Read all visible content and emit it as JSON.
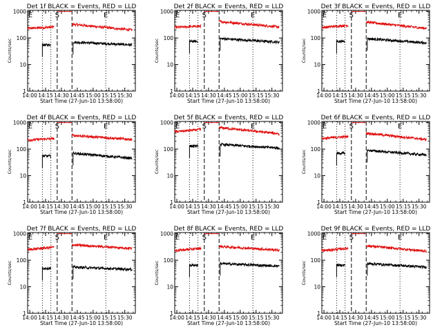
{
  "figure": {
    "colors": {
      "background": "#ffffff",
      "events": "#000000",
      "lld": "#e01010",
      "axes": "#000000"
    }
  },
  "chart_data": [
    {
      "type": "line",
      "title": "Det 1f BLACK = Events, RED = LLD",
      "xlabel": "Start Time (27-Jun-10 13:58:00)",
      "ylabel": "Counts/sec",
      "x_ticks": [
        "14:00",
        "14:15",
        "14:30",
        "14:45",
        "15:00",
        "15:15",
        "15:30"
      ],
      "y_ticks": [
        "1",
        "10",
        "100",
        "1000"
      ],
      "yscale": "log",
      "ylim": [
        1,
        1100
      ],
      "xlim": [
        "13:58",
        "15:40"
      ],
      "dotted_lines": [
        "14:12",
        "14:20",
        "15:12"
      ],
      "dashed_lines": [
        "14:26",
        "14:40"
      ],
      "markers": [
        {
          "text": "E",
          "x": "13:58"
        },
        {
          "text": "S",
          "x": "14:26"
        },
        {
          "text": "E",
          "x": "15:12"
        }
      ],
      "series": [
        {
          "color": "red",
          "segments": [
            {
              "x": [
                "13:58",
                "14:23"
              ],
              "y": [
                230,
                260
              ]
            },
            {
              "x": [
                "14:26",
                "14:40"
              ],
              "y": [
                1000,
                1000
              ]
            },
            {
              "x": [
                "14:40",
                "15:37"
              ],
              "y": [
                330,
                200
              ]
            }
          ]
        },
        {
          "color": "black",
          "segments": [
            {
              "x": [
                "14:12",
                "14:20"
              ],
              "y": [
                55,
                55
              ]
            },
            {
              "x": [
                "14:41",
                "15:37"
              ],
              "y": [
                70,
                55
              ]
            }
          ]
        }
      ]
    },
    {
      "type": "line",
      "title": "Det 2f BLACK = Events, RED = LLD",
      "xlabel": "Start Time (27-Jun-10 13:58:00)",
      "ylabel": "Counts/sec",
      "x_ticks": [
        "14:00",
        "14:15",
        "14:30",
        "14:45",
        "15:00",
        "15:15",
        "15:30"
      ],
      "y_ticks": [
        "1",
        "10",
        "100",
        "1000"
      ],
      "yscale": "log",
      "ylim": [
        1,
        1100
      ],
      "xlim": [
        "13:58",
        "15:40"
      ],
      "dotted_lines": [
        "14:12",
        "14:20",
        "15:12"
      ],
      "dashed_lines": [
        "14:26",
        "14:40"
      ],
      "markers": [
        {
          "text": "E",
          "x": "13:58"
        },
        {
          "text": "S",
          "x": "14:26"
        },
        {
          "text": "E",
          "x": "15:12"
        }
      ],
      "series": [
        {
          "color": "red",
          "segments": [
            {
              "x": [
                "13:58",
                "14:23"
              ],
              "y": [
                250,
                280
              ]
            },
            {
              "x": [
                "14:26",
                "14:40"
              ],
              "y": [
                1000,
                1000
              ]
            },
            {
              "x": [
                "14:40",
                "15:37"
              ],
              "y": [
                420,
                260
              ]
            }
          ]
        },
        {
          "color": "black",
          "segments": [
            {
              "x": [
                "14:12",
                "14:20"
              ],
              "y": [
                75,
                75
              ]
            },
            {
              "x": [
                "14:41",
                "15:37"
              ],
              "y": [
                95,
                70
              ]
            }
          ]
        }
      ]
    },
    {
      "type": "line",
      "title": "Det 3f BLACK = Events, RED = LLD",
      "xlabel": "Start Time (27-Jun-10 13:58:00)",
      "ylabel": "Counts/sec",
      "x_ticks": [
        "14:00",
        "14:15",
        "14:30",
        "14:45",
        "15:00",
        "15:15",
        "15:30"
      ],
      "y_ticks": [
        "1",
        "10",
        "100",
        "1000"
      ],
      "yscale": "log",
      "ylim": [
        1,
        1100
      ],
      "xlim": [
        "13:58",
        "15:40"
      ],
      "dotted_lines": [
        "14:12",
        "14:20",
        "15:12"
      ],
      "dashed_lines": [
        "14:26",
        "14:40"
      ],
      "markers": [
        {
          "text": "E",
          "x": "13:58"
        },
        {
          "text": "S",
          "x": "14:26"
        },
        {
          "text": "E",
          "x": "15:12"
        }
      ],
      "series": [
        {
          "color": "red",
          "segments": [
            {
              "x": [
                "13:58",
                "14:23"
              ],
              "y": [
                250,
                300
              ]
            },
            {
              "x": [
                "14:26",
                "14:40"
              ],
              "y": [
                1000,
                1000
              ]
            },
            {
              "x": [
                "14:40",
                "15:37"
              ],
              "y": [
                400,
                230
              ]
            }
          ]
        },
        {
          "color": "black",
          "segments": [
            {
              "x": [
                "14:12",
                "14:20"
              ],
              "y": [
                75,
                75
              ]
            },
            {
              "x": [
                "14:41",
                "15:37"
              ],
              "y": [
                95,
                65
              ]
            }
          ]
        }
      ]
    },
    {
      "type": "line",
      "title": "Det 4f BLACK = Events, RED = LLD",
      "xlabel": "Start Time (27-Jun-10 13:58:00)",
      "ylabel": "Counts/sec",
      "x_ticks": [
        "14:00",
        "14:15",
        "14:30",
        "14:45",
        "15:00",
        "15:15",
        "15:30"
      ],
      "y_ticks": [
        "1",
        "10",
        "100",
        "1000"
      ],
      "yscale": "log",
      "ylim": [
        1,
        1100
      ],
      "xlim": [
        "13:58",
        "15:40"
      ],
      "dotted_lines": [
        "14:12",
        "14:20",
        "15:12"
      ],
      "dashed_lines": [
        "14:26",
        "14:40"
      ],
      "markers": [
        {
          "text": "E",
          "x": "13:58"
        },
        {
          "text": "S",
          "x": "14:26"
        },
        {
          "text": "E",
          "x": "15:12"
        }
      ],
      "series": [
        {
          "color": "red",
          "segments": [
            {
              "x": [
                "13:58",
                "14:23"
              ],
              "y": [
                220,
                250
              ]
            },
            {
              "x": [
                "14:26",
                "14:40"
              ],
              "y": [
                1000,
                1000
              ]
            },
            {
              "x": [
                "14:40",
                "15:37"
              ],
              "y": [
                330,
                230
              ]
            }
          ]
        },
        {
          "color": "black",
          "segments": [
            {
              "x": [
                "14:12",
                "14:20"
              ],
              "y": [
                55,
                55
              ]
            },
            {
              "x": [
                "14:41",
                "15:37"
              ],
              "y": [
                70,
                45
              ]
            }
          ]
        }
      ]
    },
    {
      "type": "line",
      "title": "Det 5f BLACK = Events, RED = LLD",
      "xlabel": "Start Time (27-Jun-10 13:58:00)",
      "ylabel": "Counts/sec",
      "x_ticks": [
        "14:00",
        "14:15",
        "14:30",
        "14:45",
        "15:00",
        "15:15",
        "15:30"
      ],
      "y_ticks": [
        "1",
        "10",
        "100",
        "1000"
      ],
      "yscale": "log",
      "ylim": [
        1,
        1100
      ],
      "xlim": [
        "13:58",
        "15:40"
      ],
      "dotted_lines": [
        "14:12",
        "14:20",
        "15:12"
      ],
      "dashed_lines": [
        "14:26",
        "14:40"
      ],
      "markers": [
        {
          "text": "E",
          "x": "13:58"
        },
        {
          "text": "S",
          "x": "14:26"
        },
        {
          "text": "E",
          "x": "15:12"
        }
      ],
      "series": [
        {
          "color": "red",
          "segments": [
            {
              "x": [
                "13:58",
                "14:23"
              ],
              "y": [
                450,
                550
              ]
            },
            {
              "x": [
                "14:26",
                "14:40"
              ],
              "y": [
                1000,
                1000
              ]
            },
            {
              "x": [
                "14:40",
                "15:37"
              ],
              "y": [
                650,
                380
              ]
            }
          ]
        },
        {
          "color": "black",
          "segments": [
            {
              "x": [
                "14:12",
                "14:20"
              ],
              "y": [
                130,
                130
              ]
            },
            {
              "x": [
                "14:41",
                "15:37"
              ],
              "y": [
                150,
                110
              ]
            }
          ]
        }
      ]
    },
    {
      "type": "line",
      "title": "Det 6f BLACK = Events, RED = LLD",
      "xlabel": "Start Time (27-Jun-10 13:58:00)",
      "ylabel": "Counts/sec",
      "x_ticks": [
        "14:00",
        "14:15",
        "14:30",
        "14:45",
        "15:00",
        "15:15",
        "15:30"
      ],
      "y_ticks": [
        "1",
        "10",
        "100",
        "1000"
      ],
      "yscale": "log",
      "ylim": [
        1,
        1100
      ],
      "xlim": [
        "13:58",
        "15:40"
      ],
      "dotted_lines": [
        "14:12",
        "14:20",
        "15:12"
      ],
      "dashed_lines": [
        "14:26",
        "14:40"
      ],
      "markers": [
        {
          "text": "E",
          "x": "13:58"
        },
        {
          "text": "S",
          "x": "14:26"
        },
        {
          "text": "E",
          "x": "15:12"
        }
      ],
      "series": [
        {
          "color": "red",
          "segments": [
            {
              "x": [
                "13:58",
                "14:23"
              ],
              "y": [
                250,
                300
              ]
            },
            {
              "x": [
                "14:26",
                "14:40"
              ],
              "y": [
                1000,
                1000
              ]
            },
            {
              "x": [
                "14:40",
                "15:37"
              ],
              "y": [
                400,
                230
              ]
            }
          ]
        },
        {
          "color": "black",
          "segments": [
            {
              "x": [
                "14:12",
                "14:20"
              ],
              "y": [
                70,
                70
              ]
            },
            {
              "x": [
                "14:41",
                "15:37"
              ],
              "y": [
                90,
                60
              ]
            }
          ]
        }
      ]
    },
    {
      "type": "line",
      "title": "Det 7f BLACK = Events, RED = LLD",
      "xlabel": "Start Time (27-Jun-10 13:58:00)",
      "ylabel": "Counts/sec",
      "x_ticks": [
        "14:00",
        "14:15",
        "14:30",
        "14:45",
        "15:00",
        "15:15",
        "15:30"
      ],
      "y_ticks": [
        "1",
        "10",
        "100",
        "1000"
      ],
      "yscale": "log",
      "ylim": [
        1,
        1100
      ],
      "xlim": [
        "13:58",
        "15:40"
      ],
      "dotted_lines": [
        "14:12",
        "14:20",
        "15:12"
      ],
      "dashed_lines": [
        "14:26",
        "14:40"
      ],
      "markers": [
        {
          "text": "E",
          "x": "13:58"
        },
        {
          "text": "S",
          "x": "14:26"
        },
        {
          "text": "E",
          "x": "15:12"
        }
      ],
      "series": [
        {
          "color": "red",
          "segments": [
            {
              "x": [
                "13:58",
                "14:23"
              ],
              "y": [
                250,
                310
              ]
            },
            {
              "x": [
                "14:26",
                "14:40"
              ],
              "y": [
                1000,
                1000
              ]
            },
            {
              "x": [
                "14:40",
                "15:37"
              ],
              "y": [
                380,
                280
              ]
            }
          ]
        },
        {
          "color": "black",
          "segments": [
            {
              "x": [
                "14:12",
                "14:20"
              ],
              "y": [
                50,
                50
              ]
            },
            {
              "x": [
                "14:41",
                "15:37"
              ],
              "y": [
                55,
                45
              ]
            }
          ]
        }
      ]
    },
    {
      "type": "line",
      "title": "Det 8f BLACK = Events, RED = LLD",
      "xlabel": "Start Time (27-Jun-10 13:58:00)",
      "ylabel": "Counts/sec",
      "x_ticks": [
        "14:00",
        "14:15",
        "14:30",
        "14:45",
        "15:00",
        "15:15",
        "15:30"
      ],
      "y_ticks": [
        "1",
        "10",
        "100",
        "1000"
      ],
      "yscale": "log",
      "ylim": [
        1,
        1100
      ],
      "xlim": [
        "13:58",
        "15:40"
      ],
      "dotted_lines": [
        "14:12",
        "14:20",
        "15:12"
      ],
      "dashed_lines": [
        "14:26",
        "14:40"
      ],
      "markers": [
        {
          "text": "E",
          "x": "13:58"
        },
        {
          "text": "S",
          "x": "14:26"
        },
        {
          "text": "E",
          "x": "15:12"
        }
      ],
      "series": [
        {
          "color": "red",
          "segments": [
            {
              "x": [
                "13:58",
                "14:23"
              ],
              "y": [
                230,
                280
              ]
            },
            {
              "x": [
                "14:26",
                "14:40"
              ],
              "y": [
                1000,
                1000
              ]
            },
            {
              "x": [
                "14:40",
                "15:37"
              ],
              "y": [
                330,
                240
              ]
            }
          ]
        },
        {
          "color": "black",
          "segments": [
            {
              "x": [
                "14:12",
                "14:20"
              ],
              "y": [
                65,
                65
              ]
            },
            {
              "x": [
                "14:41",
                "15:37"
              ],
              "y": [
                75,
                60
              ]
            }
          ]
        }
      ]
    },
    {
      "type": "line",
      "title": "Det 9f BLACK = Events, RED = LLD",
      "xlabel": "Start Time (27-Jun-10 13:58:00)",
      "ylabel": "Counts/sec",
      "x_ticks": [
        "14:00",
        "14:15",
        "14:30",
        "14:45",
        "15:00",
        "15:15",
        "15:30"
      ],
      "y_ticks": [
        "1",
        "10",
        "100",
        "1000"
      ],
      "yscale": "log",
      "ylim": [
        1,
        1100
      ],
      "xlim": [
        "13:58",
        "15:40"
      ],
      "dotted_lines": [
        "14:12",
        "14:20",
        "15:12"
      ],
      "dashed_lines": [
        "14:26",
        "14:40"
      ],
      "markers": [
        {
          "text": "E",
          "x": "13:58"
        },
        {
          "text": "S",
          "x": "14:26"
        },
        {
          "text": "E",
          "x": "15:12"
        }
      ],
      "series": [
        {
          "color": "red",
          "segments": [
            {
              "x": [
                "13:58",
                "14:23"
              ],
              "y": [
                230,
                280
              ]
            },
            {
              "x": [
                "14:26",
                "14:40"
              ],
              "y": [
                1000,
                1000
              ]
            },
            {
              "x": [
                "14:40",
                "15:37"
              ],
              "y": [
                350,
                220
              ]
            }
          ]
        },
        {
          "color": "black",
          "segments": [
            {
              "x": [
                "14:12",
                "14:20"
              ],
              "y": [
                65,
                65
              ]
            },
            {
              "x": [
                "14:41",
                "15:37"
              ],
              "y": [
                75,
                55
              ]
            }
          ]
        }
      ]
    }
  ]
}
